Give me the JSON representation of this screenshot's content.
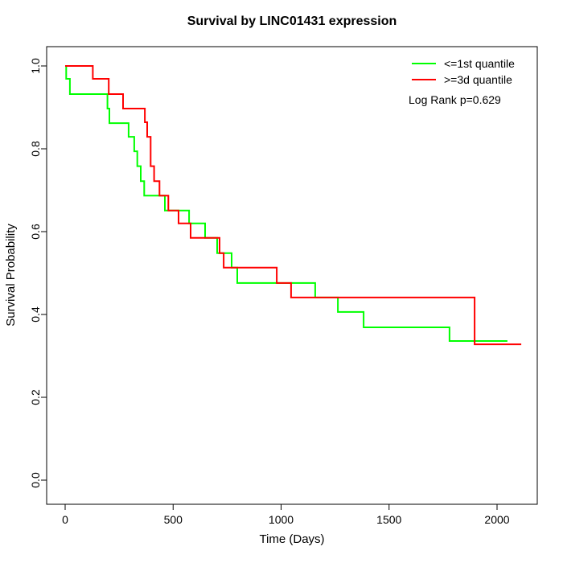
{
  "page_title": "Survival by LINC01431 expression",
  "chart_data": {
    "type": "line",
    "variant": "kaplan-meier-step",
    "title": "Survival by LINC01431 expression",
    "xlabel": "Time (Days)",
    "ylabel": "Survival Probability",
    "xlim": [
      0,
      2100
    ],
    "ylim": [
      0.0,
      1.0
    ],
    "grid": false,
    "legend_position": "top-right",
    "x_ticks": [
      0,
      500,
      1000,
      1500,
      2000
    ],
    "x_tick_labels": [
      "0",
      "500",
      "1000",
      "1500",
      "2000"
    ],
    "y_ticks": [
      0.0,
      0.2,
      0.4,
      0.6,
      0.8,
      1.0
    ],
    "y_tick_labels": [
      "0.0",
      "0.2",
      "0.4",
      "0.6",
      "0.8",
      "1.0"
    ],
    "annotation": "Log Rank p=0.629",
    "series": [
      {
        "name": "<=1st quantile",
        "color": "#00ff00",
        "end_day": 2048,
        "points": [
          [
            0,
            1.0
          ],
          [
            5,
            0.969
          ],
          [
            22,
            0.932
          ],
          [
            196,
            0.897
          ],
          [
            205,
            0.862
          ],
          [
            294,
            0.829
          ],
          [
            320,
            0.794
          ],
          [
            334,
            0.758
          ],
          [
            350,
            0.722
          ],
          [
            366,
            0.687
          ],
          [
            462,
            0.651
          ],
          [
            574,
            0.62
          ],
          [
            648,
            0.585
          ],
          [
            704,
            0.548
          ],
          [
            771,
            0.513
          ],
          [
            797,
            0.476
          ],
          [
            1158,
            0.441
          ],
          [
            1263,
            0.406
          ],
          [
            1382,
            0.369
          ],
          [
            1780,
            0.336
          ]
        ]
      },
      {
        "name": ">=3d quantile",
        "color": "#ff0000",
        "end_day": 2112,
        "points": [
          [
            0,
            1.0
          ],
          [
            128,
            0.969
          ],
          [
            202,
            0.932
          ],
          [
            268,
            0.897
          ],
          [
            369,
            0.864
          ],
          [
            380,
            0.829
          ],
          [
            396,
            0.758
          ],
          [
            412,
            0.722
          ],
          [
            437,
            0.687
          ],
          [
            478,
            0.651
          ],
          [
            525,
            0.62
          ],
          [
            581,
            0.585
          ],
          [
            715,
            0.548
          ],
          [
            734,
            0.513
          ],
          [
            980,
            0.476
          ],
          [
            1046,
            0.441
          ],
          [
            1896,
            0.328
          ]
        ]
      }
    ]
  },
  "legend": {
    "entries": [
      {
        "label": "<=1st quantile",
        "color": "#00ff00"
      },
      {
        "label": ">=3d quantile",
        "color": "#ff0000"
      }
    ],
    "note": "Log Rank p=0.629"
  }
}
